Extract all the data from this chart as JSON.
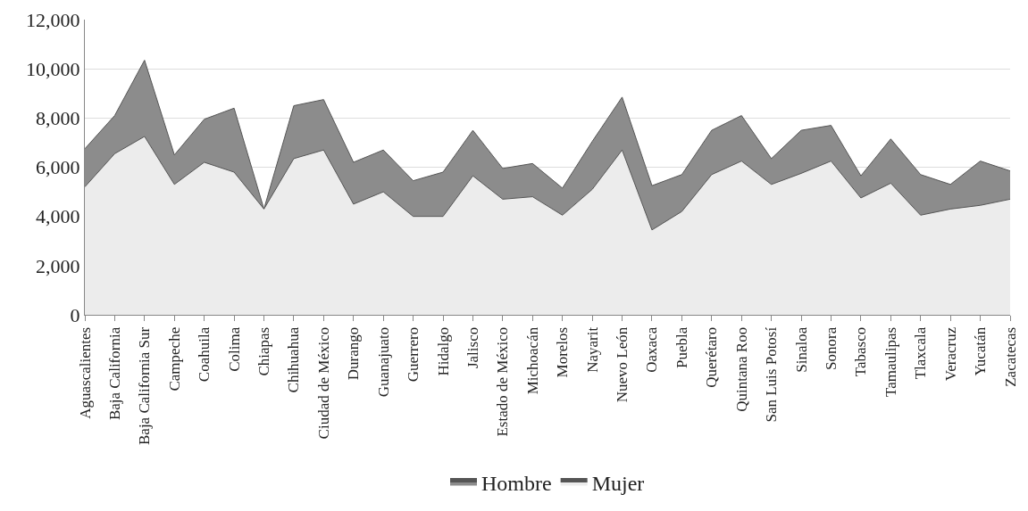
{
  "chart_data": {
    "type": "area",
    "categories": [
      "Aguascalientes",
      "Baja California",
      "Baja California Sur",
      "Campeche",
      "Coahuila",
      "Colima",
      "Chiapas",
      "Chihuahua",
      "Ciudad de México",
      "Durango",
      "Guanajuato",
      "Guerrero",
      "Hidalgo",
      "Jalisco",
      "Estado de México",
      "Michoacán",
      "Morelos",
      "Nayarit",
      "Nuevo León",
      "Oaxaca",
      "Puebla",
      "Querétaro",
      "Quintana Roo",
      "San Luis Potosí",
      "Sinaloa",
      "Sonora",
      "Tabasco",
      "Tamaulipas",
      "Tlaxcala",
      "Veracruz",
      "Yucatán",
      "Zacatecas"
    ],
    "series": [
      {
        "name": "Hombre",
        "color": "#8c8c8c",
        "values": [
          6750,
          8100,
          10350,
          6500,
          7950,
          8400,
          4300,
          8500,
          8750,
          6200,
          6700,
          5450,
          5800,
          7500,
          5950,
          6150,
          5150,
          7050,
          8850,
          5250,
          5700,
          7500,
          8100,
          6350,
          7500,
          7700,
          5650,
          7150,
          5700,
          5300,
          6250,
          5850
        ]
      },
      {
        "name": "Mujer",
        "color": "#ececec",
        "values": [
          5200,
          6550,
          7250,
          5300,
          6200,
          5800,
          4300,
          6350,
          6700,
          4500,
          5000,
          4000,
          4000,
          5650,
          4700,
          4800,
          4050,
          5100,
          6700,
          3450,
          4200,
          5700,
          6250,
          5300,
          5750,
          6250,
          4750,
          5350,
          4050,
          4300,
          4450,
          4700
        ]
      }
    ],
    "ylim": [
      0,
      12000
    ],
    "yticks": [
      {
        "value": 0,
        "label": "0"
      },
      {
        "value": 2000,
        "label": "2,000"
      },
      {
        "value": 4000,
        "label": "4,000"
      },
      {
        "value": 6000,
        "label": "6,000"
      },
      {
        "value": 8000,
        "label": "8,000"
      },
      {
        "value": 10000,
        "label": "10,000"
      },
      {
        "value": 12000,
        "label": "12,000"
      }
    ],
    "grid": "y",
    "legend": "bottom",
    "line_style": "solid",
    "marker": "none"
  }
}
